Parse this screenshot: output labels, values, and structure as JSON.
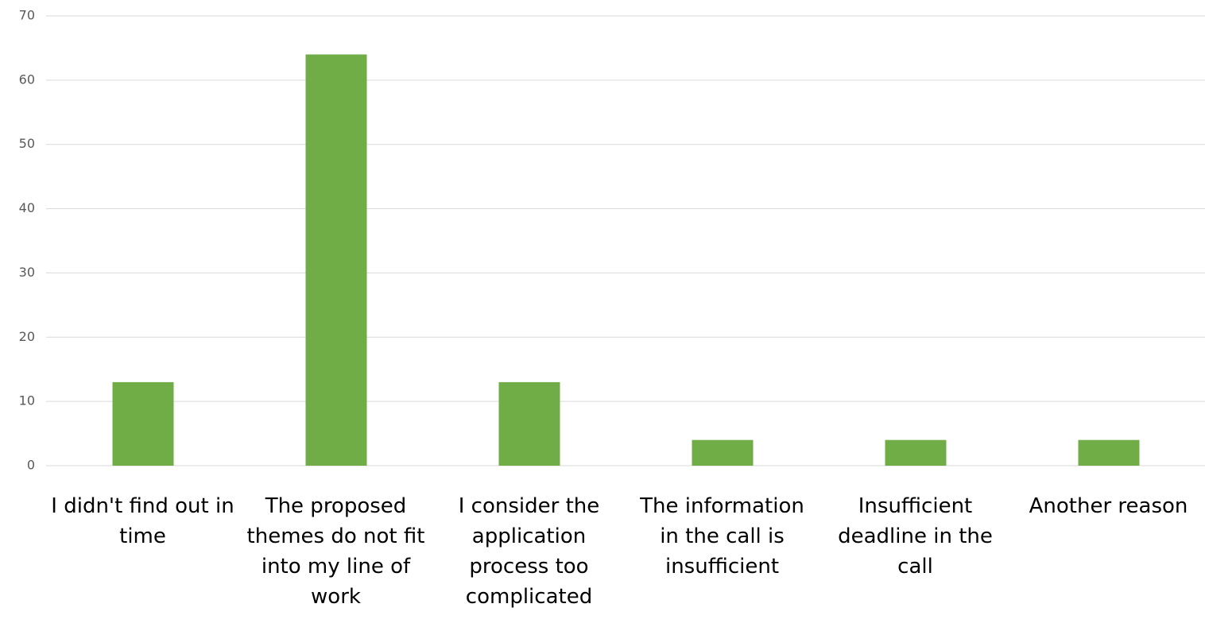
{
  "chart_data": {
    "type": "bar",
    "categories": [
      "I didn't find out in time",
      "The proposed themes do not fit into my line of work",
      "I consider the application process too complicated",
      "The information in the call is insufficient",
      "Insufficient deadline in the call",
      "Another reason"
    ],
    "values": [
      13,
      64,
      13,
      4,
      4,
      4
    ],
    "color": "#70ad47",
    "ylim": [
      0,
      70
    ],
    "yticks": [
      0,
      10,
      20,
      30,
      40,
      50,
      60,
      70
    ],
    "grid": true
  }
}
